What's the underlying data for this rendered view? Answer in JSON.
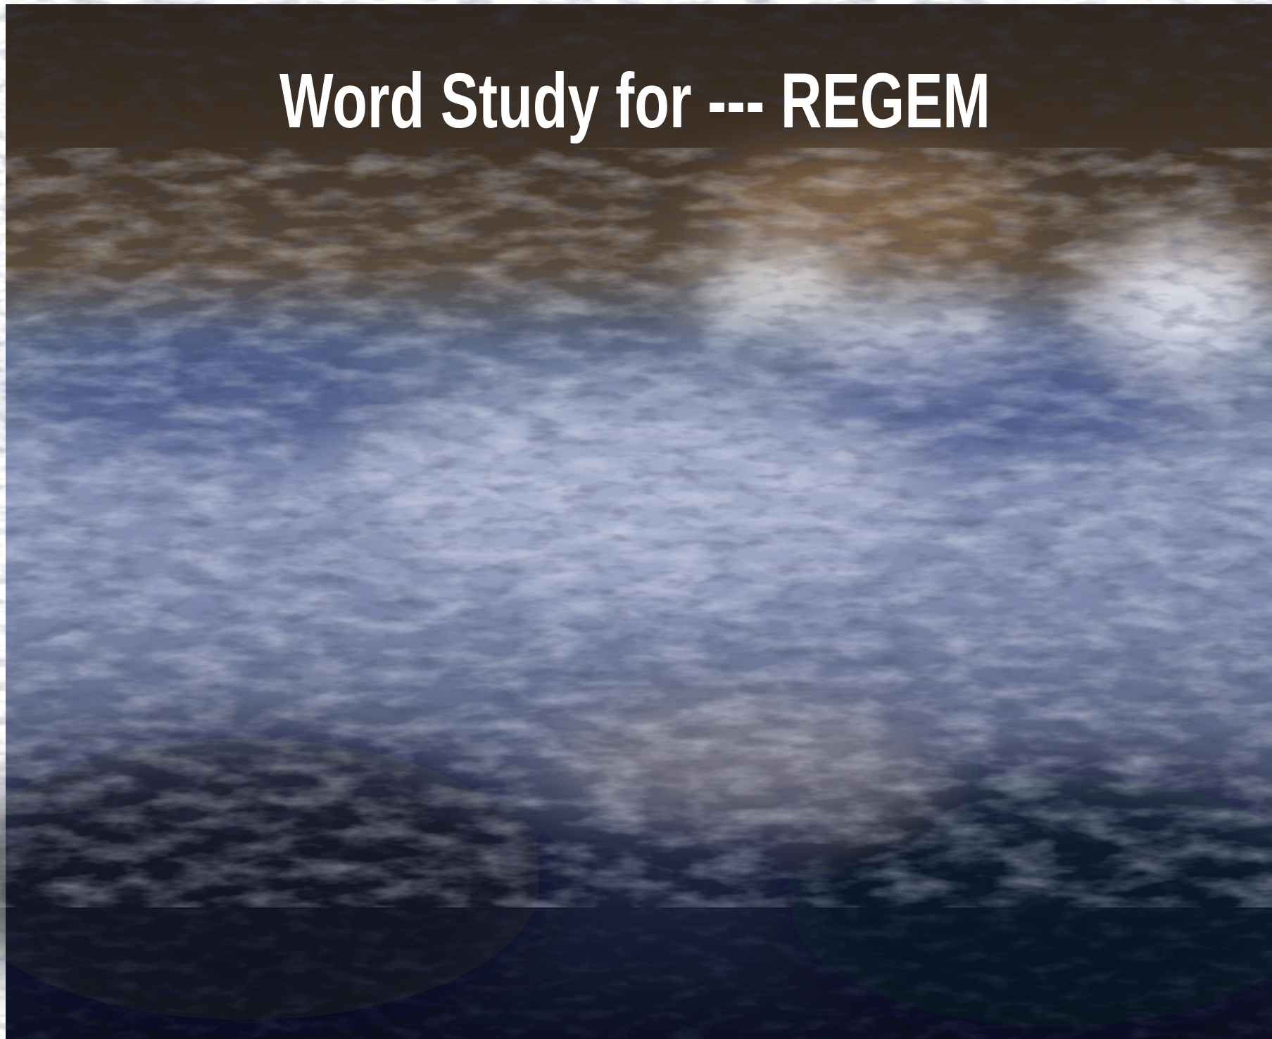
{
  "title": "Word Study for --- REGEM"
}
